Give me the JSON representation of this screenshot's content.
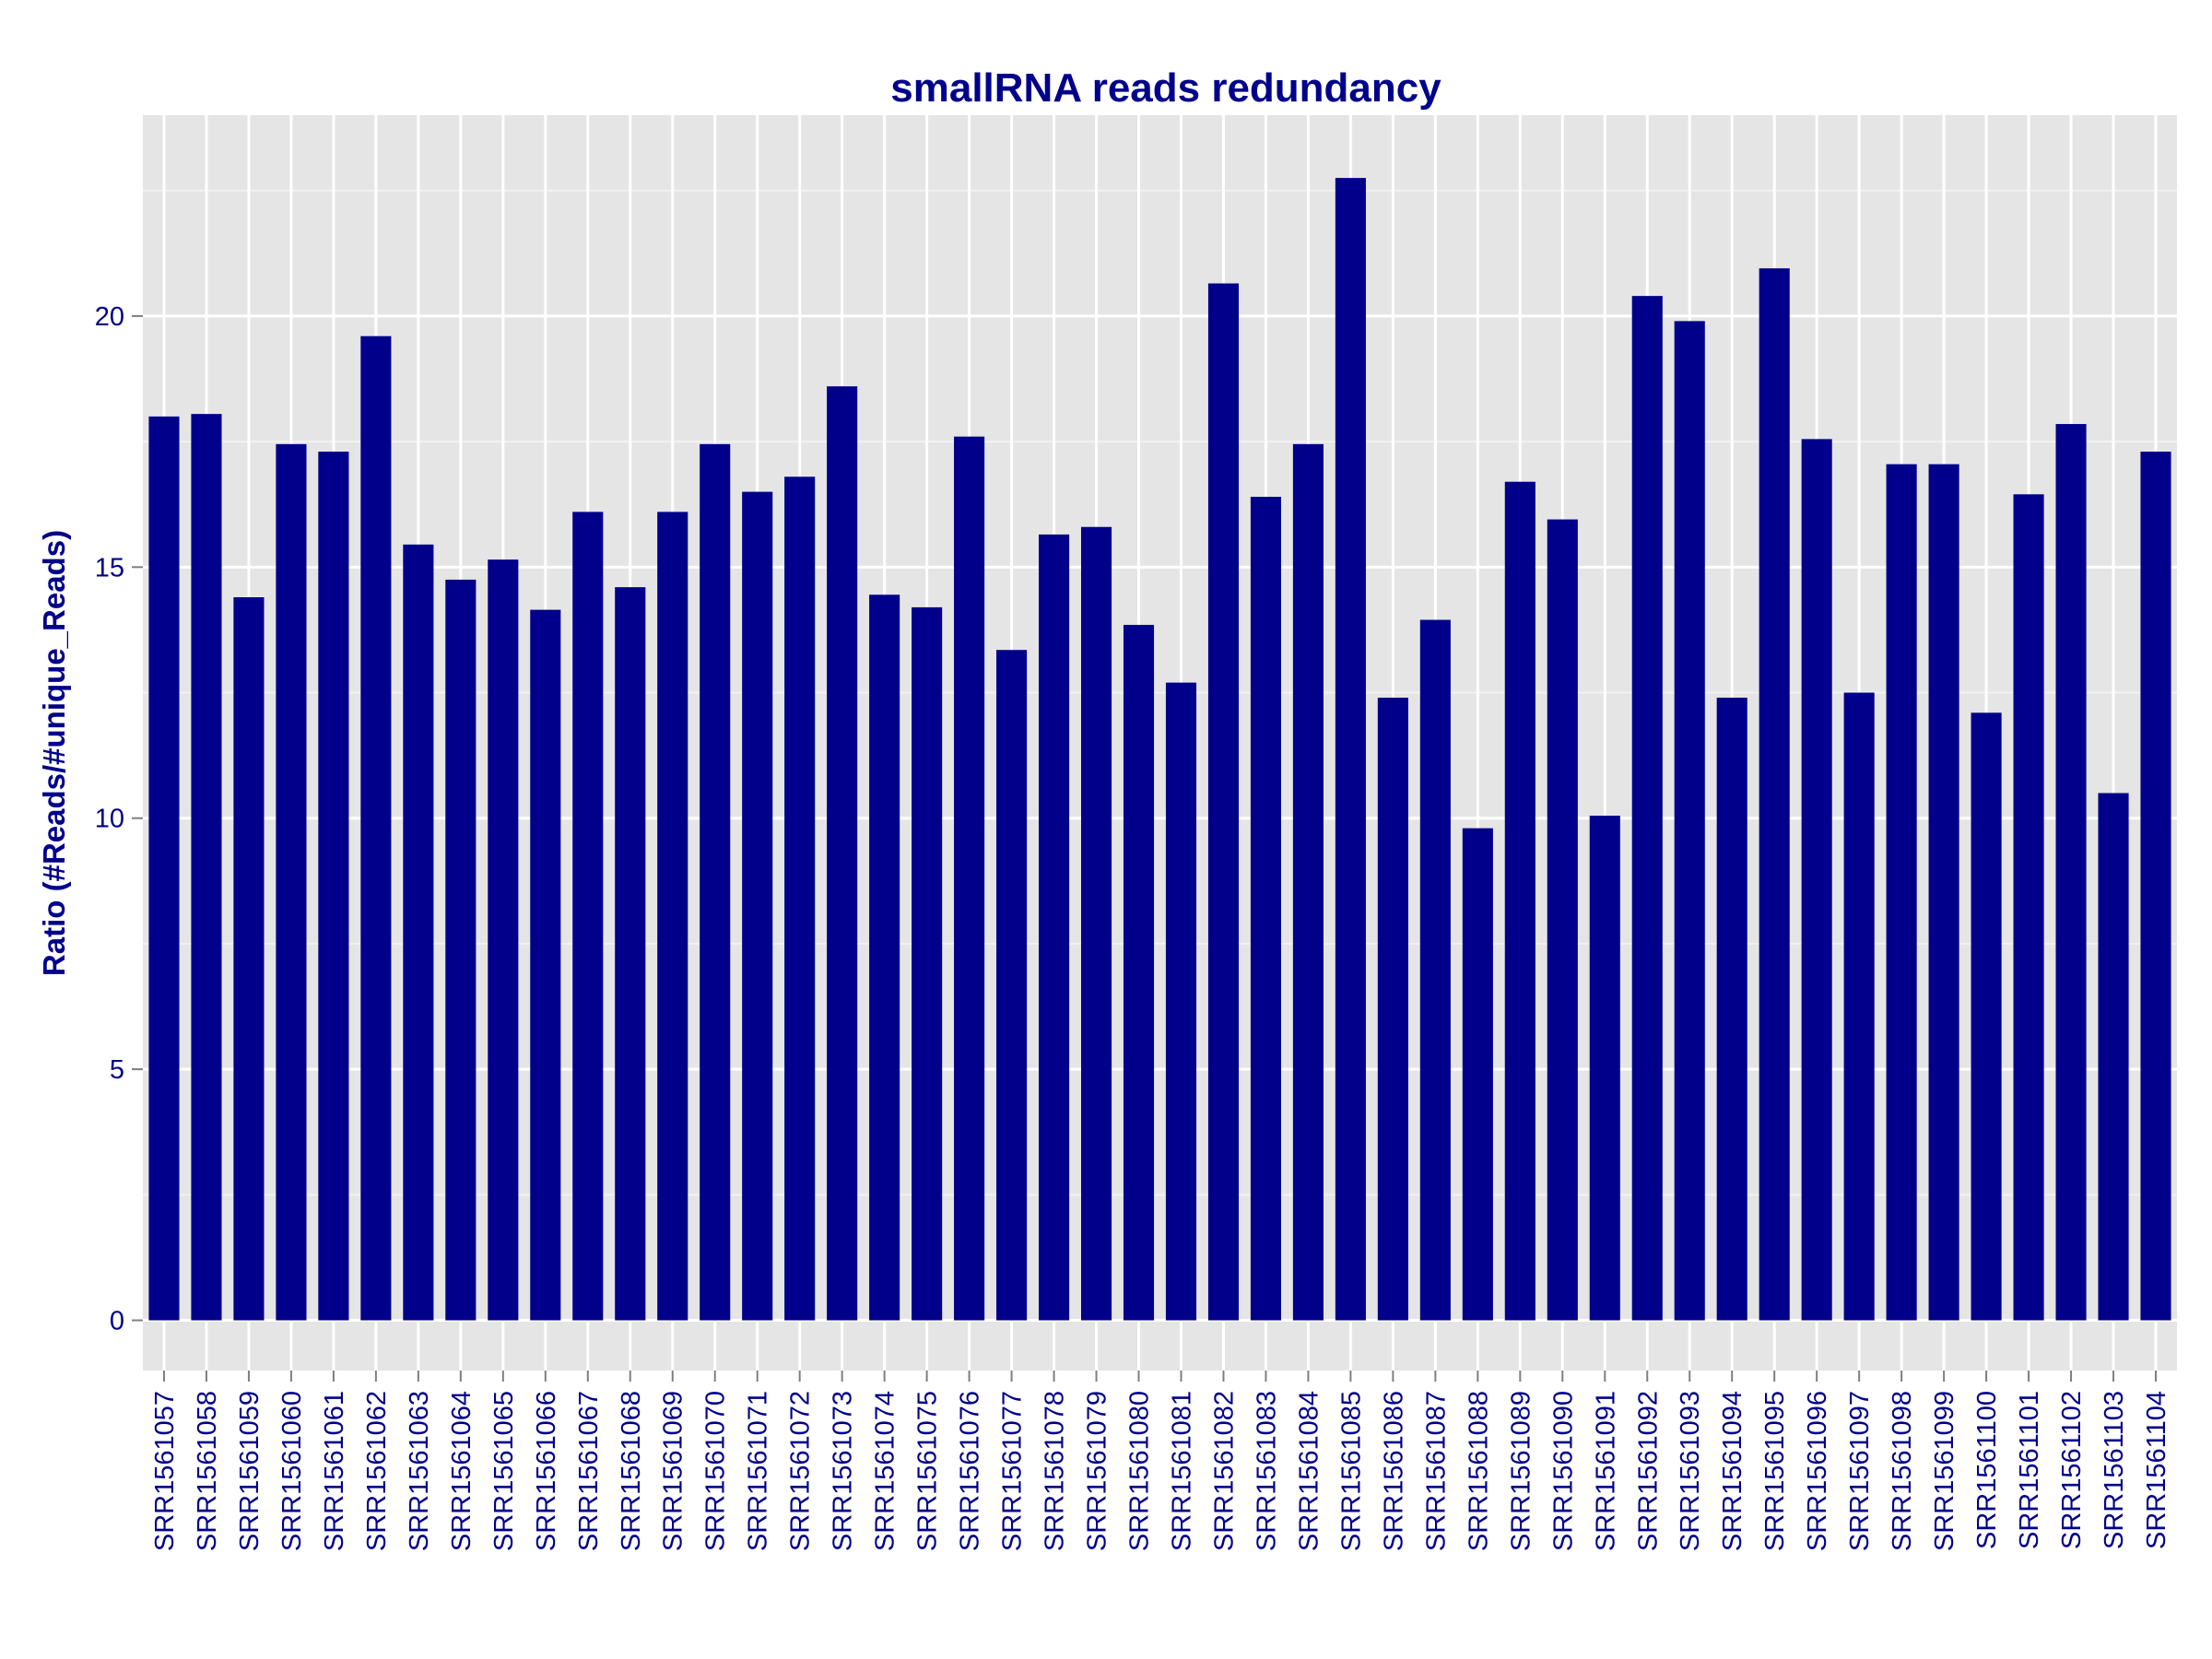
{
  "chart_data": {
    "type": "bar",
    "title": "smallRNA reads redundancy",
    "xlabel": "",
    "ylabel": "Ratio (#Reads/#unique_Reads)",
    "ylim": [
      -1,
      24
    ],
    "yticks": [
      0,
      5,
      10,
      15,
      20
    ],
    "grid": true,
    "legend": "none",
    "bar_color": "#00008B",
    "panel_color": "#E5E5E5",
    "categories": [
      "SRR1561057",
      "SRR1561058",
      "SRR1561059",
      "SRR1561060",
      "SRR1561061",
      "SRR1561062",
      "SRR1561063",
      "SRR1561064",
      "SRR1561065",
      "SRR1561066",
      "SRR1561067",
      "SRR1561068",
      "SRR1561069",
      "SRR1561070",
      "SRR1561071",
      "SRR1561072",
      "SRR1561073",
      "SRR1561074",
      "SRR1561075",
      "SRR1561076",
      "SRR1561077",
      "SRR1561078",
      "SRR1561079",
      "SRR1561080",
      "SRR1561081",
      "SRR1561082",
      "SRR1561083",
      "SRR1561084",
      "SRR1561085",
      "SRR1561086",
      "SRR1561087",
      "SRR1561088",
      "SRR1561089",
      "SRR1561090",
      "SRR1561091",
      "SRR1561092",
      "SRR1561093",
      "SRR1561094",
      "SRR1561095",
      "SRR1561096",
      "SRR1561097",
      "SRR1561098",
      "SRR1561099",
      "SRR1561100",
      "SRR1561101",
      "SRR1561102",
      "SRR1561103",
      "SRR1561104"
    ],
    "values": [
      18.0,
      18.05,
      14.4,
      17.45,
      17.3,
      19.6,
      15.45,
      14.75,
      15.15,
      14.15,
      16.1,
      14.6,
      16.1,
      17.45,
      16.5,
      16.8,
      18.6,
      14.45,
      14.2,
      17.6,
      13.35,
      15.65,
      15.8,
      13.85,
      12.7,
      20.65,
      16.4,
      17.45,
      22.75,
      12.4,
      13.95,
      9.8,
      16.7,
      15.95,
      10.05,
      20.4,
      19.9,
      12.4,
      20.95,
      17.55,
      12.5,
      17.05,
      17.05,
      12.1,
      16.45,
      17.85,
      10.5,
      17.3
    ]
  }
}
